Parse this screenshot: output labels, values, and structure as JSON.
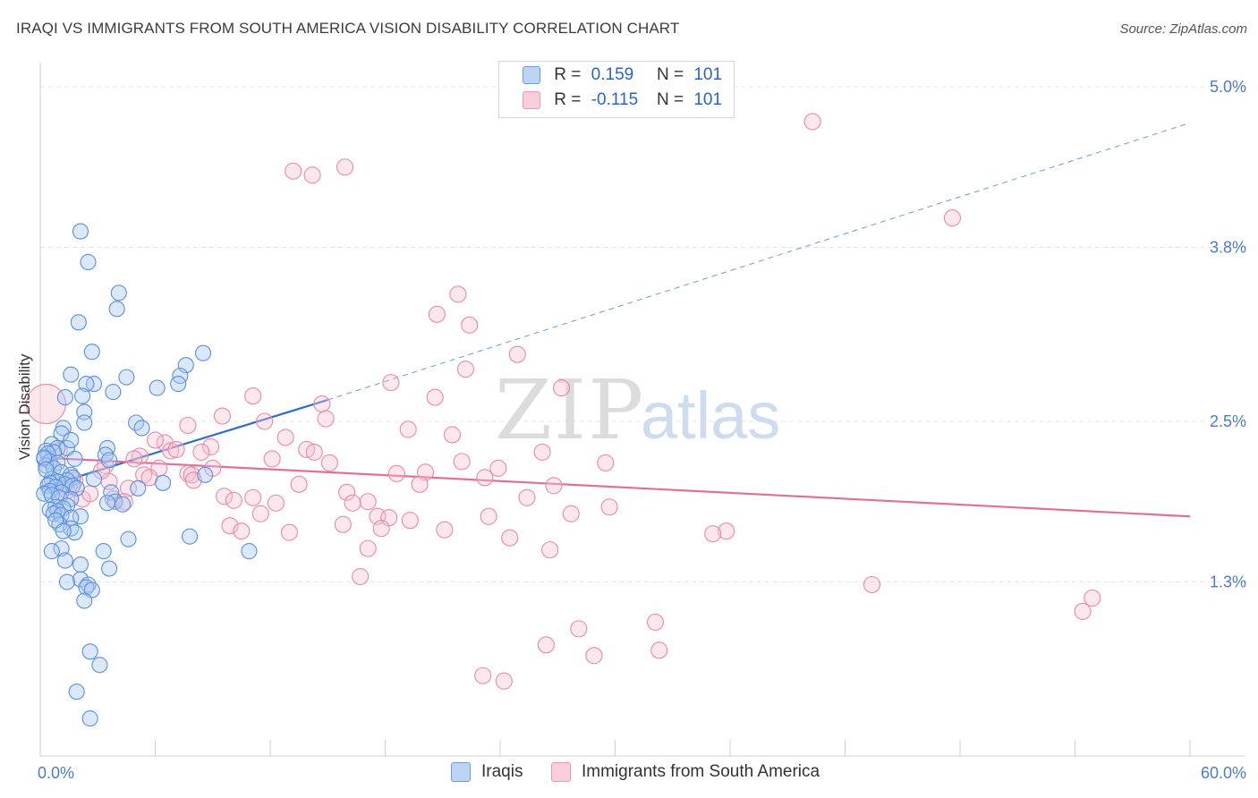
{
  "header": {
    "title": "IRAQI VS IMMIGRANTS FROM SOUTH AMERICA VISION DISABILITY CORRELATION CHART",
    "source": "Source: ZipAtlas.com"
  },
  "legend": {
    "rows": [
      {
        "r_label": "R =",
        "r_value": "0.159",
        "n_label": "N =",
        "n_value": "101"
      },
      {
        "r_label": "R =",
        "r_value": "-0.115",
        "n_label": "N =",
        "n_value": "101"
      }
    ]
  },
  "bottom_legend": {
    "iraqis": "Iraqis",
    "immigrants": "Immigrants from South America"
  },
  "colors": {
    "blue_fill": "#a9c8f2",
    "blue_stroke": "#5b8fdb",
    "blue_line": "#2f6ccc",
    "pink_fill": "#f7bfd0",
    "pink_stroke": "#e889a8",
    "pink_line": "#e0709a",
    "axis_label": "#4a7cc9",
    "grid": "#e4e4e4"
  },
  "chart_data": {
    "type": "scatter",
    "title": "IRAQI VS IMMIGRANTS FROM SOUTH AMERICA VISION DISABILITY CORRELATION CHART",
    "ylabel": "Vision Disability",
    "xlim": [
      0,
      60
    ],
    "ylim": [
      0,
      5.2
    ],
    "x_tick_labels": [
      "0.0%",
      "60.0%"
    ],
    "y_ticks": [
      1.3,
      2.5,
      3.8,
      5.0
    ],
    "y_tick_labels": [
      "1.3%",
      "2.5%",
      "3.8%",
      "5.0%"
    ],
    "grid": true,
    "legend_position": "top-center",
    "series": [
      {
        "name": "Iraqis",
        "r": 0.159,
        "n": 101,
        "trend": {
          "x0": 0,
          "y0": 2.0,
          "x1": 15,
          "y1": 2.66,
          "dashed_to_x": 60,
          "dashed_to_y": 4.73
        },
        "points": [
          [
            2.1,
            3.92
          ],
          [
            2.5,
            3.69
          ],
          [
            4.1,
            3.46
          ],
          [
            2.0,
            3.24
          ],
          [
            4.0,
            3.34
          ],
          [
            2.7,
            3.02
          ],
          [
            4.5,
            2.83
          ],
          [
            8.5,
            3.01
          ],
          [
            7.6,
            2.92
          ],
          [
            7.3,
            2.84
          ],
          [
            1.6,
            2.85
          ],
          [
            2.8,
            2.78
          ],
          [
            2.4,
            2.78
          ],
          [
            3.8,
            2.72
          ],
          [
            2.2,
            2.69
          ],
          [
            1.3,
            2.68
          ],
          [
            6.1,
            2.75
          ],
          [
            7.2,
            2.78
          ],
          [
            2.3,
            2.57
          ],
          [
            2.3,
            2.49
          ],
          [
            5.0,
            2.49
          ],
          [
            5.3,
            2.45
          ],
          [
            1.2,
            2.45
          ],
          [
            1.1,
            2.41
          ],
          [
            0.6,
            2.33
          ],
          [
            0.9,
            2.3
          ],
          [
            1.4,
            2.3
          ],
          [
            3.5,
            2.3
          ],
          [
            0.3,
            2.28
          ],
          [
            0.7,
            2.27
          ],
          [
            0.4,
            2.26
          ],
          [
            3.4,
            2.25
          ],
          [
            0.2,
            2.22
          ],
          [
            1.8,
            2.22
          ],
          [
            3.6,
            2.21
          ],
          [
            0.5,
            2.2
          ],
          [
            0.9,
            2.19
          ],
          [
            0.3,
            2.17
          ],
          [
            0.7,
            2.15
          ],
          [
            1.1,
            2.12
          ],
          [
            8.6,
            2.1
          ],
          [
            1.6,
            2.1
          ],
          [
            1.7,
            2.08
          ],
          [
            2.8,
            2.07
          ],
          [
            0.6,
            2.07
          ],
          [
            1.4,
            2.06
          ],
          [
            0.9,
            2.05
          ],
          [
            0.5,
            2.04
          ],
          [
            6.4,
            2.04
          ],
          [
            1.3,
            2.03
          ],
          [
            0.4,
            2.02
          ],
          [
            1.7,
            2.02
          ],
          [
            0.8,
            2.01
          ],
          [
            5.1,
            2.0
          ],
          [
            1.9,
            2.0
          ],
          [
            0.5,
            1.98
          ],
          [
            1.1,
            1.97
          ],
          [
            3.7,
            1.97
          ],
          [
            0.2,
            1.96
          ],
          [
            0.6,
            1.95
          ],
          [
            1.0,
            1.93
          ],
          [
            1.6,
            1.92
          ],
          [
            3.9,
            1.9
          ],
          [
            3.5,
            1.89
          ],
          [
            4.3,
            1.88
          ],
          [
            1.4,
            1.87
          ],
          [
            0.8,
            1.86
          ],
          [
            1.2,
            1.85
          ],
          [
            0.5,
            1.84
          ],
          [
            0.9,
            1.83
          ],
          [
            0.7,
            1.81
          ],
          [
            1.1,
            1.8
          ],
          [
            2.1,
            1.79
          ],
          [
            1.6,
            1.78
          ],
          [
            1.0,
            1.73
          ],
          [
            1.6,
            1.7
          ],
          [
            1.8,
            1.67
          ],
          [
            7.8,
            1.64
          ],
          [
            4.6,
            1.62
          ],
          [
            1.1,
            1.55
          ],
          [
            0.6,
            1.53
          ],
          [
            3.3,
            1.53
          ],
          [
            10.9,
            1.53
          ],
          [
            1.3,
            1.46
          ],
          [
            2.1,
            1.43
          ],
          [
            3.6,
            1.4
          ],
          [
            2.1,
            1.32
          ],
          [
            1.4,
            1.3
          ],
          [
            2.5,
            1.28
          ],
          [
            2.4,
            1.26
          ],
          [
            2.7,
            1.24
          ],
          [
            2.3,
            1.16
          ],
          [
            2.6,
            0.78
          ],
          [
            3.1,
            0.68
          ],
          [
            1.9,
            0.48
          ],
          [
            2.6,
            0.28
          ],
          [
            0.2,
            2.23
          ],
          [
            0.3,
            2.14
          ],
          [
            1.6,
            2.36
          ],
          [
            0.8,
            1.76
          ],
          [
            1.2,
            1.68
          ]
        ]
      },
      {
        "name": "Immigrants from South America",
        "r": -0.115,
        "n": 101,
        "trend": {
          "x0": 0,
          "y0": 2.23,
          "x1": 60,
          "y1": 1.79
        },
        "points": [
          [
            40.3,
            4.74
          ],
          [
            13.2,
            4.37
          ],
          [
            14.2,
            4.34
          ],
          [
            15.9,
            4.4
          ],
          [
            47.6,
            4.02
          ],
          [
            21.8,
            3.45
          ],
          [
            20.7,
            3.3
          ],
          [
            22.4,
            3.22
          ],
          [
            24.9,
            3.0
          ],
          [
            22.2,
            2.89
          ],
          [
            18.3,
            2.79
          ],
          [
            27.2,
            2.75
          ],
          [
            11.1,
            2.69
          ],
          [
            20.6,
            2.68
          ],
          [
            14.7,
            2.63
          ],
          [
            9.5,
            2.54
          ],
          [
            14.9,
            2.52
          ],
          [
            11.7,
            2.5
          ],
          [
            7.7,
            2.47
          ],
          [
            19.2,
            2.44
          ],
          [
            21.5,
            2.4
          ],
          [
            12.8,
            2.38
          ],
          [
            6.5,
            2.34
          ],
          [
            8.9,
            2.31
          ],
          [
            13.9,
            2.29
          ],
          [
            8.4,
            2.27
          ],
          [
            6.8,
            2.28
          ],
          [
            14.3,
            2.27
          ],
          [
            26.2,
            2.27
          ],
          [
            5.2,
            2.24
          ],
          [
            22.0,
            2.2
          ],
          [
            29.5,
            2.19
          ],
          [
            15.1,
            2.19
          ],
          [
            3.4,
            2.17
          ],
          [
            6.2,
            2.15
          ],
          [
            20.1,
            2.12
          ],
          [
            7.7,
            2.11
          ],
          [
            5.4,
            2.1
          ],
          [
            7.9,
            2.1
          ],
          [
            23.2,
            2.08
          ],
          [
            1.8,
            2.06
          ],
          [
            3.6,
            2.05
          ],
          [
            8.0,
            2.06
          ],
          [
            19.8,
            2.03
          ],
          [
            26.8,
            2.02
          ],
          [
            4.6,
            2.0
          ],
          [
            1.4,
            1.98
          ],
          [
            16.0,
            1.97
          ],
          [
            9.6,
            1.94
          ],
          [
            25.4,
            1.93
          ],
          [
            11.1,
            1.93
          ],
          [
            2.2,
            1.92
          ],
          [
            3.8,
            1.92
          ],
          [
            10.1,
            1.91
          ],
          [
            4.4,
            1.9
          ],
          [
            17.1,
            1.9
          ],
          [
            12.3,
            1.89
          ],
          [
            16.3,
            1.89
          ],
          [
            29.7,
            1.86
          ],
          [
            27.7,
            1.81
          ],
          [
            11.5,
            1.81
          ],
          [
            23.4,
            1.79
          ],
          [
            17.6,
            1.79
          ],
          [
            18.2,
            1.78
          ],
          [
            19.3,
            1.76
          ],
          [
            15.8,
            1.73
          ],
          [
            9.9,
            1.72
          ],
          [
            17.8,
            1.7
          ],
          [
            21.1,
            1.69
          ],
          [
            35.8,
            1.68
          ],
          [
            10.5,
            1.68
          ],
          [
            13.0,
            1.67
          ],
          [
            35.1,
            1.66
          ],
          [
            24.5,
            1.63
          ],
          [
            17.1,
            1.55
          ],
          [
            26.6,
            1.54
          ],
          [
            16.7,
            1.34
          ],
          [
            43.4,
            1.28
          ],
          [
            54.9,
            1.18
          ],
          [
            54.4,
            1.08
          ],
          [
            32.1,
            1.0
          ],
          [
            28.1,
            0.95
          ],
          [
            26.4,
            0.83
          ],
          [
            32.3,
            0.79
          ],
          [
            28.9,
            0.75
          ],
          [
            23.1,
            0.6
          ],
          [
            24.2,
            0.56
          ],
          [
            0.3,
            2.63
          ],
          [
            1.0,
            2.28
          ],
          [
            2.6,
            1.96
          ],
          [
            1.5,
            2.01
          ],
          [
            3.2,
            2.13
          ],
          [
            4.9,
            2.22
          ],
          [
            6.0,
            2.36
          ],
          [
            9.0,
            2.15
          ],
          [
            12.1,
            2.22
          ],
          [
            13.5,
            2.03
          ],
          [
            18.6,
            2.11
          ],
          [
            5.7,
            2.08
          ],
          [
            7.1,
            2.29
          ],
          [
            23.9,
            2.15
          ]
        ]
      }
    ]
  }
}
